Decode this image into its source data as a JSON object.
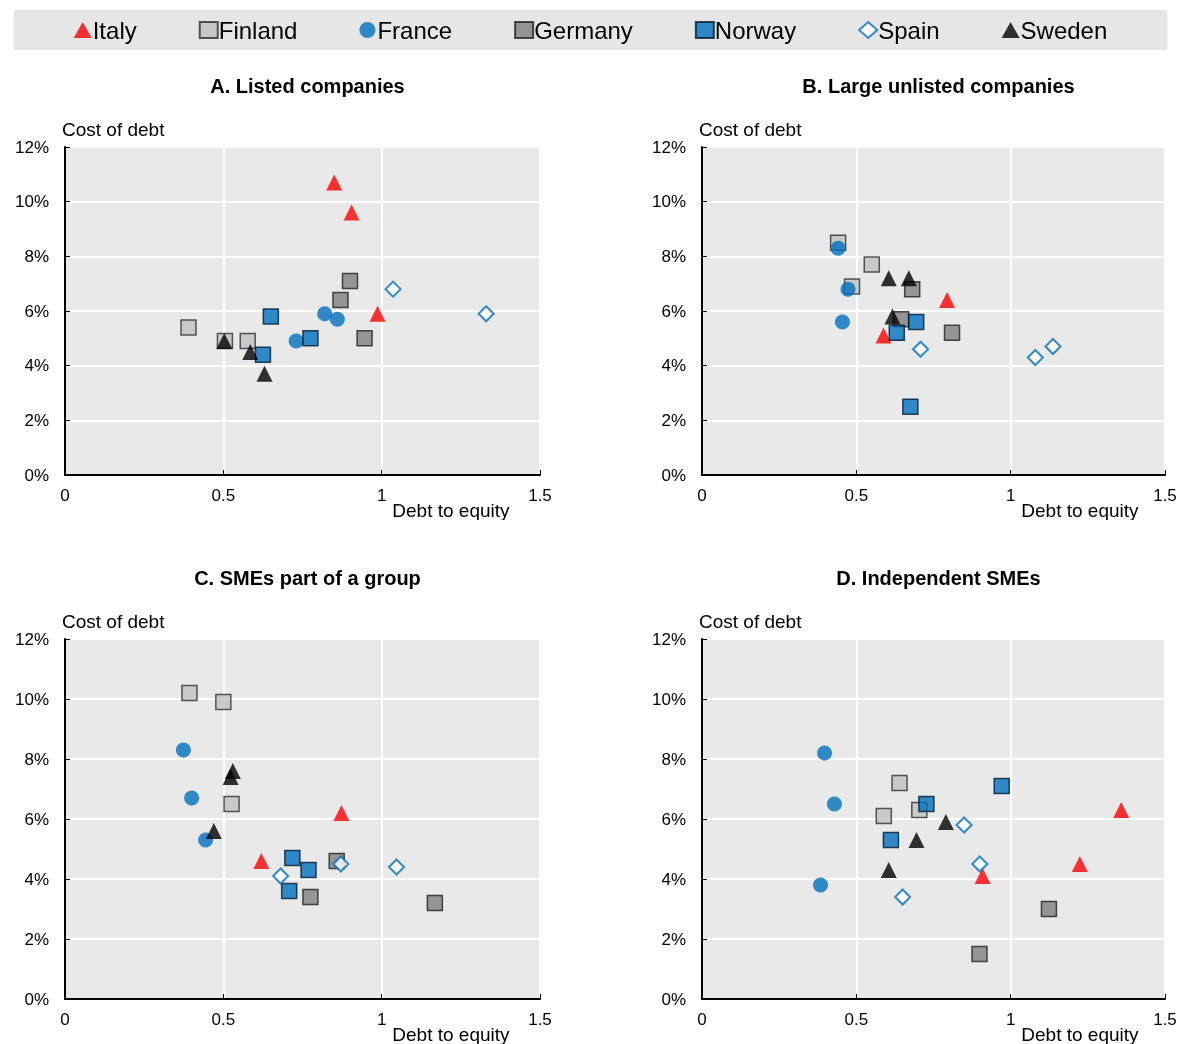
{
  "chart_data": [
    {
      "type": "scatter",
      "title": "A. Listed companies",
      "xlabel": "Debt to equity",
      "ylabel": "Cost of debt",
      "xlim": [
        0,
        1.5
      ],
      "xticks": [
        0,
        0.5,
        1,
        1.5
      ],
      "ylim": [
        0,
        12
      ],
      "yticks": [
        {
          "value": 0,
          "label": "0%"
        },
        {
          "value": 2,
          "label": "2%"
        },
        {
          "value": 4,
          "label": "4%"
        },
        {
          "value": 6,
          "label": "6%"
        },
        {
          "value": 8,
          "label": "8%"
        },
        {
          "value": 10,
          "label": "10%"
        },
        {
          "value": 12,
          "label": "12%"
        }
      ],
      "grid": true,
      "legend": "top",
      "series": [
        {
          "name": "Italy",
          "color": "#ff0000",
          "marker": "triangle",
          "x": [
            0.85,
            0.905,
            0.987
          ],
          "values": [
            10.7,
            9.6,
            5.9
          ]
        },
        {
          "name": "Finland",
          "color": "#c0c0c0",
          "marker": "square",
          "x": [
            0.39,
            0.505,
            0.577
          ],
          "values": [
            5.4,
            4.9,
            4.9
          ]
        },
        {
          "name": "France",
          "color": "#0070c0",
          "marker": "circle",
          "x": [
            0.82,
            0.86,
            0.73
          ],
          "values": [
            5.9,
            5.7,
            4.9
          ]
        },
        {
          "name": "Germany",
          "color": "#808080",
          "marker": "square",
          "x": [
            0.9,
            0.87,
            0.946
          ],
          "values": [
            7.1,
            6.4,
            5.0
          ]
        },
        {
          "name": "Norway",
          "color": "#0070c0",
          "marker": "square",
          "x": [
            0.65,
            0.775,
            0.625
          ],
          "values": [
            5.8,
            5.0,
            4.4
          ]
        },
        {
          "name": "Spain",
          "color": "#0070c0",
          "marker": "diamond",
          "x": [
            1.036,
            1.33
          ],
          "values": [
            6.8,
            5.9
          ]
        },
        {
          "name": "Sweden",
          "color": "#000000",
          "marker": "triangle",
          "x": [
            0.503,
            0.585,
            0.63
          ],
          "values": [
            4.9,
            4.5,
            3.7
          ]
        }
      ]
    },
    {
      "type": "scatter",
      "title": "B. Large unlisted companies",
      "xlabel": "Debt to equity",
      "ylabel": "Cost of debt",
      "xlim": [
        0,
        1.5
      ],
      "xticks": [
        0,
        0.5,
        1,
        1.5
      ],
      "ylim": [
        0,
        12
      ],
      "yticks": [
        {
          "value": 0,
          "label": "0%"
        },
        {
          "value": 2,
          "label": "2%"
        },
        {
          "value": 4,
          "label": "4%"
        },
        {
          "value": 6,
          "label": "6%"
        },
        {
          "value": 8,
          "label": "8%"
        },
        {
          "value": 10,
          "label": "10%"
        },
        {
          "value": 12,
          "label": "12%"
        }
      ],
      "grid": true,
      "series": [
        {
          "color": "#ff0000",
          "marker": "triangle",
          "x": [
            0.794,
            0.588
          ],
          "values": [
            6.4,
            5.1
          ]
        },
        {
          "color": "#c0c0c0",
          "marker": "square",
          "x": [
            0.441,
            0.55,
            0.486
          ],
          "values": [
            8.5,
            7.7,
            6.9
          ]
        },
        {
          "color": "#0070c0",
          "marker": "circle",
          "x": [
            0.441,
            0.473,
            0.455
          ],
          "values": [
            8.3,
            6.8,
            5.6
          ]
        },
        {
          "color": "#808080",
          "marker": "square",
          "x": [
            0.681,
            0.81,
            0.645
          ],
          "values": [
            6.8,
            5.2,
            5.7
          ]
        },
        {
          "color": "#0070c0",
          "marker": "square",
          "x": [
            0.694,
            0.631,
            0.675
          ],
          "values": [
            5.6,
            5.2,
            2.5
          ]
        },
        {
          "color": "#0070c0",
          "marker": "diamond",
          "x": [
            0.708,
            1.08,
            1.137
          ],
          "values": [
            4.6,
            4.3,
            4.7
          ]
        },
        {
          "color": "#000000",
          "marker": "triangle",
          "x": [
            0.605,
            0.67,
            0.617
          ],
          "values": [
            7.2,
            7.2,
            5.8
          ]
        }
      ]
    },
    {
      "type": "scatter",
      "title": "C. SMEs part of a group",
      "xlabel": "Debt to equity",
      "ylabel": "Cost of debt",
      "xlim": [
        0,
        1.5
      ],
      "xticks": [
        0,
        0.5,
        1,
        1.5
      ],
      "ylim": [
        0,
        12
      ],
      "yticks": [
        {
          "value": 0,
          "label": "0%"
        },
        {
          "value": 2,
          "label": "2%"
        },
        {
          "value": 4,
          "label": "4%"
        },
        {
          "value": 6,
          "label": "6%"
        },
        {
          "value": 8,
          "label": "8%"
        },
        {
          "value": 10,
          "label": "10%"
        },
        {
          "value": 12,
          "label": "12%"
        }
      ],
      "grid": true,
      "series": [
        {
          "color": "#ff0000",
          "marker": "triangle",
          "x": [
            0.62,
            0.873
          ],
          "values": [
            4.6,
            6.2
          ]
        },
        {
          "color": "#c0c0c0",
          "marker": "square",
          "x": [
            0.393,
            0.5,
            0.526
          ],
          "values": [
            10.2,
            9.9,
            6.5
          ]
        },
        {
          "color": "#0070c0",
          "marker": "circle",
          "x": [
            0.374,
            0.4,
            0.444
          ],
          "values": [
            8.3,
            6.7,
            5.3
          ]
        },
        {
          "color": "#808080",
          "marker": "square",
          "x": [
            0.858,
            0.775,
            1.168
          ],
          "values": [
            4.6,
            3.4,
            3.2
          ]
        },
        {
          "color": "#0070c0",
          "marker": "square",
          "x": [
            0.718,
            0.769,
            0.708
          ],
          "values": [
            4.7,
            4.3,
            3.6
          ]
        },
        {
          "color": "#0070c0",
          "marker": "diamond",
          "x": [
            0.681,
            0.871,
            1.047
          ],
          "values": [
            4.1,
            4.5,
            4.4
          ]
        },
        {
          "color": "#000000",
          "marker": "triangle",
          "x": [
            0.53,
            0.523,
            0.47
          ],
          "values": [
            7.6,
            7.4,
            5.6
          ]
        }
      ]
    },
    {
      "type": "scatter",
      "title": "D. Independent SMEs",
      "xlabel": "Debt to equity",
      "ylabel": "Cost of debt",
      "xlim": [
        0,
        1.5
      ],
      "xticks": [
        0,
        0.5,
        1,
        1.5
      ],
      "ylim": [
        0,
        12
      ],
      "yticks": [
        {
          "value": 0,
          "label": "0%"
        },
        {
          "value": 2,
          "label": "2%"
        },
        {
          "value": 4,
          "label": "4%"
        },
        {
          "value": 6,
          "label": "6%"
        },
        {
          "value": 8,
          "label": "8%"
        },
        {
          "value": 10,
          "label": "10%"
        },
        {
          "value": 12,
          "label": "12%"
        }
      ],
      "grid": true,
      "series": [
        {
          "color": "#ff0000",
          "marker": "triangle",
          "x": [
            1.358,
            1.224,
            0.909
          ],
          "values": [
            6.3,
            4.5,
            4.1
          ]
        },
        {
          "color": "#c0c0c0",
          "marker": "square",
          "x": [
            0.64,
            0.589,
            0.704
          ],
          "values": [
            7.2,
            6.1,
            6.3
          ]
        },
        {
          "color": "#0070c0",
          "marker": "circle",
          "x": [
            0.397,
            0.429,
            0.384
          ],
          "values": [
            8.2,
            6.5,
            3.8
          ]
        },
        {
          "color": "#808080",
          "marker": "square",
          "x": [
            1.124,
            0.899
          ],
          "values": [
            3.0,
            1.5
          ]
        },
        {
          "color": "#0070c0",
          "marker": "square",
          "x": [
            0.971,
            0.727,
            0.612
          ],
          "values": [
            7.1,
            6.5,
            5.3
          ]
        },
        {
          "color": "#0070c0",
          "marker": "diamond",
          "x": [
            0.849,
            0.9,
            0.65
          ],
          "values": [
            5.8,
            4.5,
            3.4
          ]
        },
        {
          "color": "#000000",
          "marker": "triangle",
          "x": [
            0.79,
            0.695,
            0.605
          ],
          "values": [
            5.9,
            5.3,
            4.3
          ]
        }
      ]
    }
  ]
}
